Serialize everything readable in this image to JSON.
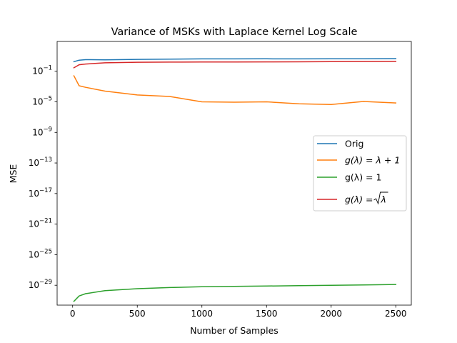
{
  "chart_data": {
    "type": "line",
    "title": "Variance of MSKs with Laplace Kernel Log Scale",
    "xlabel": "Number of Samples",
    "ylabel": "MSE",
    "xlim": [
      -120,
      2620
    ],
    "ylim_log10": [
      -31.6,
      2.9
    ],
    "yscale": "log",
    "grid": false,
    "legend_position": "center-right",
    "x_ticks": [
      0,
      500,
      1000,
      1500,
      2000,
      2500
    ],
    "x_tick_labels": [
      "0",
      "500",
      "1000",
      "1500",
      "2000",
      "2500"
    ],
    "y_ticks_log10": [
      -1,
      -5,
      -9,
      -13,
      -17,
      -21,
      -25,
      -29
    ],
    "y_tick_labels": [
      {
        "base": "10",
        "exp": "−1"
      },
      {
        "base": "10",
        "exp": "−5"
      },
      {
        "base": "10",
        "exp": "−9"
      },
      {
        "base": "10",
        "exp": "−13"
      },
      {
        "base": "10",
        "exp": "−17"
      },
      {
        "base": "10",
        "exp": "−21"
      },
      {
        "base": "10",
        "exp": "−25"
      },
      {
        "base": "10",
        "exp": "−29"
      }
    ],
    "x": [
      10,
      50,
      100,
      250,
      500,
      750,
      1000,
      1250,
      1500,
      1750,
      2000,
      2250,
      2500
    ],
    "series": [
      {
        "name": "Orig",
        "color": "#1f77b4",
        "values_log10": [
          0.25,
          0.45,
          0.52,
          0.5,
          0.55,
          0.58,
          0.62,
          0.62,
          0.63,
          0.62,
          0.63,
          0.64,
          0.66
        ]
      },
      {
        "name": "g(λ) = λ + 1",
        "label_parts": {
          "lhs": "g(λ) = λ + 1"
        },
        "color": "#ff7f0e",
        "values_log10": [
          -1.6,
          -2.9,
          -3.1,
          -3.6,
          -4.1,
          -4.3,
          -5.0,
          -5.05,
          -5.0,
          -5.25,
          -5.35,
          -4.95,
          -5.15
        ]
      },
      {
        "name": "g(λ) = 1",
        "color": "#2ca02c",
        "values_log10": [
          -31.1,
          -30.4,
          -30.1,
          -29.7,
          -29.45,
          -29.3,
          -29.2,
          -29.15,
          -29.1,
          -29.05,
          -29.0,
          -28.95,
          -28.9
        ]
      },
      {
        "name": "g(λ) = √λ",
        "label_parts": {
          "lhs": "g(λ) = ",
          "root": "λ"
        },
        "color": "#d62728",
        "values_log10": [
          -0.55,
          -0.15,
          -0.05,
          0.1,
          0.18,
          0.2,
          0.22,
          0.22,
          0.23,
          0.24,
          0.25,
          0.27,
          0.28
        ]
      }
    ]
  }
}
